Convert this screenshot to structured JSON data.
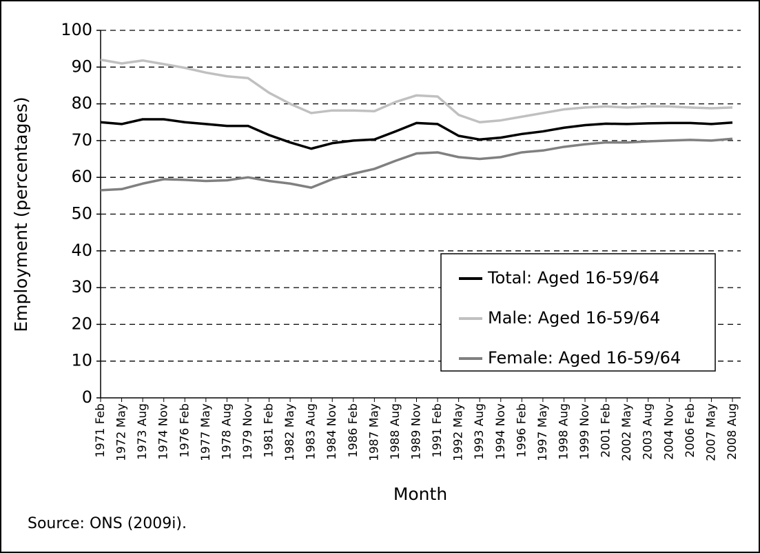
{
  "chart_data": {
    "type": "line",
    "ylabel": "Employment (percentages)",
    "xlabel": "Month",
    "source": "Source: ONS (2009i).",
    "categories": [
      "1971 Feb",
      "1972 May",
      "1973 Aug",
      "1974 Nov",
      "1976 Feb",
      "1977 May",
      "1978 Aug",
      "1979 Nov",
      "1981 Feb",
      "1982 May",
      "1983 Aug",
      "1984 Nov",
      "1986 Feb",
      "1987 May",
      "1988 Aug",
      "1989 Nov",
      "1991 Feb",
      "1992 May",
      "1993 Aug",
      "1994 Nov",
      "1996 Feb",
      "1997 May",
      "1998 Aug",
      "1999 Nov",
      "2001 Feb",
      "2002 May",
      "2003 Aug",
      "2004 Nov",
      "2006 Feb",
      "2007 May",
      "2008 Aug"
    ],
    "series": [
      {
        "name": "Total: Aged 16-59/64",
        "color": "#000000",
        "values": [
          75,
          74.5,
          75.8,
          75.8,
          75,
          74.5,
          74,
          74,
          71.5,
          69.5,
          67.8,
          69.3,
          70,
          70.3,
          72.5,
          74.8,
          74.5,
          71.3,
          70.3,
          70.8,
          71.8,
          72.5,
          73.5,
          74.2,
          74.6,
          74.5,
          74.7,
          74.8,
          74.8,
          74.5,
          74.9
        ]
      },
      {
        "name": "Male: Aged 16-59/64",
        "color": "#c0c0c0",
        "values": [
          92,
          91,
          91.8,
          90.8,
          89.8,
          88.5,
          87.5,
          87,
          83,
          80,
          77.5,
          78.2,
          78.2,
          78,
          80.5,
          82.3,
          82,
          77,
          75,
          75.5,
          76.5,
          77.5,
          78.5,
          79,
          79.3,
          79,
          79.3,
          79.3,
          79,
          78.8,
          79
        ]
      },
      {
        "name": "Female: Aged 16-59/64",
        "color": "#808080",
        "values": [
          56.5,
          56.8,
          58.3,
          59.5,
          59.3,
          59,
          59.2,
          60,
          59,
          58.3,
          57.2,
          59.5,
          61,
          62.3,
          64.5,
          66.5,
          66.8,
          65.5,
          65,
          65.5,
          66.8,
          67.3,
          68.3,
          69,
          69.5,
          69.5,
          69.8,
          70,
          70.2,
          70,
          70.5
        ]
      }
    ],
    "ylim": [
      0,
      100
    ],
    "yticks": [
      0,
      10,
      20,
      30,
      40,
      50,
      60,
      70,
      80,
      90,
      100
    ],
    "grid": true,
    "legend": "lower right"
  }
}
